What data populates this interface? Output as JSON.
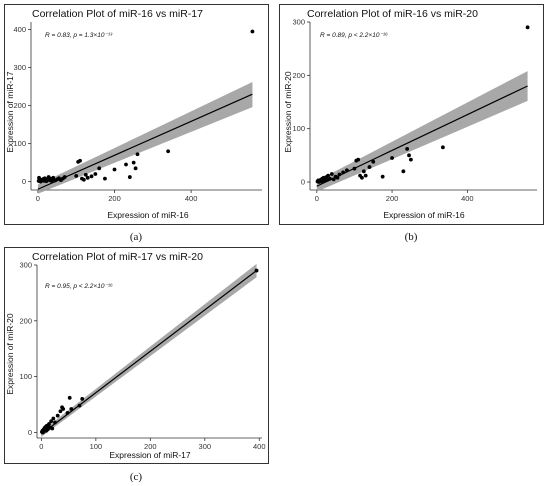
{
  "chart_data": [
    {
      "type": "scatter",
      "panel": "(a)",
      "title": "Correlation Plot of miR-16 vs miR-17",
      "xlabel": "Expression of miR-16",
      "ylabel": "Expression of miR-17",
      "annotation": "R = 0.83, p = 1.3×10⁻¹³",
      "xlim": [
        -18,
        585
      ],
      "ylim": [
        -22,
        420
      ],
      "xticks": [
        0,
        200,
        400
      ],
      "yticks": [
        0,
        100,
        200,
        300,
        400
      ],
      "grid": false,
      "fit": {
        "x0": 0,
        "y0": -20,
        "x1": 560,
        "y1": 230
      },
      "band": {
        "x0": 0,
        "lo0": -32,
        "hi0": -8,
        "x1": 560,
        "lo1": 196,
        "hi1": 262
      },
      "points": [
        [
          2,
          2
        ],
        [
          4,
          1
        ],
        [
          6,
          4
        ],
        [
          8,
          2
        ],
        [
          10,
          5
        ],
        [
          12,
          3
        ],
        [
          14,
          7
        ],
        [
          16,
          2
        ],
        [
          18,
          9
        ],
        [
          20,
          3
        ],
        [
          22,
          1
        ],
        [
          25,
          6
        ],
        [
          28,
          12
        ],
        [
          30,
          4
        ],
        [
          32,
          8
        ],
        [
          35,
          2
        ],
        [
          38,
          5
        ],
        [
          40,
          10
        ],
        [
          45,
          3
        ],
        [
          50,
          6
        ],
        [
          55,
          9
        ],
        [
          60,
          4
        ],
        [
          65,
          8
        ],
        [
          70,
          12
        ],
        [
          3,
          10
        ],
        [
          7,
          0
        ],
        [
          100,
          15
        ],
        [
          105,
          52
        ],
        [
          110,
          55
        ],
        [
          115,
          8
        ],
        [
          120,
          5
        ],
        [
          125,
          18
        ],
        [
          130,
          10
        ],
        [
          140,
          14
        ],
        [
          150,
          20
        ],
        [
          160,
          35
        ],
        [
          175,
          8
        ],
        [
          200,
          32
        ],
        [
          230,
          45
        ],
        [
          240,
          12
        ],
        [
          250,
          50
        ],
        [
          255,
          35
        ],
        [
          260,
          72
        ],
        [
          340,
          80
        ],
        [
          560,
          395
        ]
      ],
      "point_color": "#000000",
      "line_color": "#000000",
      "band_color": "#999999"
    },
    {
      "type": "scatter",
      "panel": "(b)",
      "title": "Correlation Plot of miR-16 vs miR-20",
      "xlabel": "Expression of miR-16",
      "ylabel": "Expression of miR-20",
      "annotation": "R = 0.89, p < 2.2×10⁻¹⁶",
      "xlim": [
        -18,
        585
      ],
      "ylim": [
        -15,
        300
      ],
      "xticks": [
        0,
        200,
        400
      ],
      "yticks": [
        0,
        100,
        200,
        300
      ],
      "grid": false,
      "fit": {
        "x0": 0,
        "y0": -8,
        "x1": 560,
        "y1": 180
      },
      "band": {
        "x0": 0,
        "lo0": -18,
        "hi0": 2,
        "x1": 560,
        "lo1": 152,
        "hi1": 208
      },
      "points": [
        [
          2,
          1
        ],
        [
          4,
          3
        ],
        [
          6,
          0
        ],
        [
          8,
          2
        ],
        [
          10,
          4
        ],
        [
          12,
          1
        ],
        [
          14,
          6
        ],
        [
          16,
          3
        ],
        [
          18,
          8
        ],
        [
          20,
          2
        ],
        [
          22,
          5
        ],
        [
          25,
          9
        ],
        [
          28,
          4
        ],
        [
          30,
          12
        ],
        [
          35,
          6
        ],
        [
          40,
          15
        ],
        [
          45,
          5
        ],
        [
          50,
          10
        ],
        [
          55,
          8
        ],
        [
          60,
          14
        ],
        [
          70,
          18
        ],
        [
          80,
          22
        ],
        [
          100,
          25
        ],
        [
          105,
          40
        ],
        [
          110,
          42
        ],
        [
          115,
          12
        ],
        [
          120,
          8
        ],
        [
          125,
          20
        ],
        [
          130,
          12
        ],
        [
          140,
          28
        ],
        [
          150,
          38
        ],
        [
          175,
          10
        ],
        [
          200,
          45
        ],
        [
          230,
          20
        ],
        [
          240,
          62
        ],
        [
          245,
          50
        ],
        [
          250,
          42
        ],
        [
          335,
          65
        ],
        [
          560,
          290
        ]
      ],
      "point_color": "#000000",
      "line_color": "#000000",
      "band_color": "#999999"
    },
    {
      "type": "scatter",
      "panel": "(c)",
      "title": "Correlation Plot of miR-17 vs miR-20",
      "xlabel": "Expression of miR-17",
      "ylabel": "Expression of miR-20",
      "annotation": "R = 0.95, p < 2.2×10⁻¹⁶",
      "xlim": [
        -8,
        405
      ],
      "ylim": [
        -10,
        300
      ],
      "xticks": [
        0,
        100,
        200,
        300,
        400
      ],
      "yticks": [
        0,
        100,
        200,
        300
      ],
      "grid": false,
      "fit": {
        "x0": 0,
        "y0": -3,
        "x1": 395,
        "y1": 290
      },
      "band": {
        "x0": 0,
        "lo0": -8,
        "hi0": 2,
        "x1": 395,
        "lo1": 278,
        "hi1": 302
      },
      "points": [
        [
          1,
          1
        ],
        [
          2,
          3
        ],
        [
          3,
          0
        ],
        [
          4,
          5
        ],
        [
          5,
          2
        ],
        [
          6,
          8
        ],
        [
          7,
          4
        ],
        [
          8,
          10
        ],
        [
          9,
          3
        ],
        [
          10,
          12
        ],
        [
          12,
          6
        ],
        [
          14,
          15
        ],
        [
          15,
          9
        ],
        [
          18,
          20
        ],
        [
          20,
          7
        ],
        [
          22,
          25
        ],
        [
          25,
          18
        ],
        [
          30,
          30
        ],
        [
          35,
          38
        ],
        [
          38,
          45
        ],
        [
          40,
          42
        ],
        [
          48,
          35
        ],
        [
          52,
          62
        ],
        [
          55,
          42
        ],
        [
          70,
          48
        ],
        [
          75,
          60
        ],
        [
          395,
          290
        ]
      ],
      "point_color": "#000000",
      "line_color": "#000000",
      "band_color": "#999999"
    }
  ]
}
